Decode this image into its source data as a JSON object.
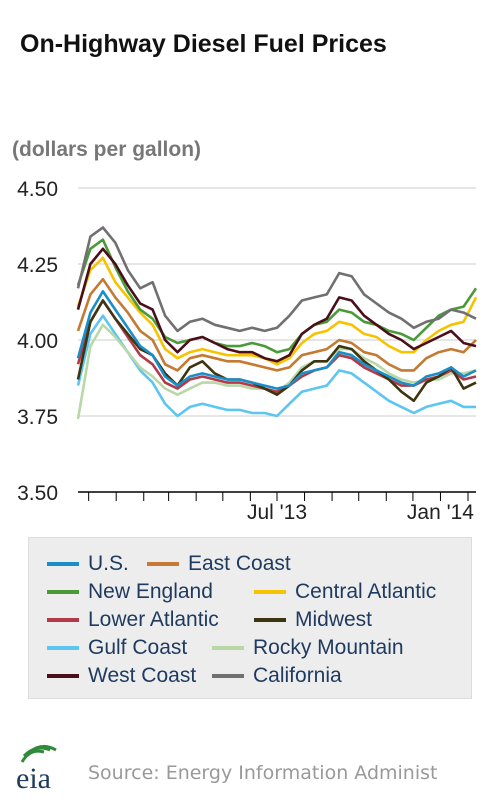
{
  "chart_data": {
    "type": "line",
    "title": "On-Highway Diesel Fuel Prices",
    "ylabel": "(dollars per gallon)",
    "xlabel": "",
    "ylim": [
      3.5,
      4.5
    ],
    "yticks": [
      "4.50",
      "4.25",
      "4.00",
      "3.75",
      "3.50"
    ],
    "ytick_values": [
      4.5,
      4.25,
      4.0,
      3.75,
      3.5
    ],
    "xlim": [
      "2012-11-19",
      "2014-02-10"
    ],
    "xticks": [
      "Jul '13",
      "Jan '14"
    ],
    "xtick_dates": [
      "2013-07-01",
      "2014-01-01"
    ],
    "grid": true,
    "legend": "bottom",
    "x": [
      "2012-11-19",
      "2012-12-03",
      "2012-12-17",
      "2012-12-31",
      "2013-01-14",
      "2013-01-28",
      "2013-02-11",
      "2013-02-25",
      "2013-03-11",
      "2013-03-25",
      "2013-04-08",
      "2013-04-22",
      "2013-05-06",
      "2013-05-20",
      "2013-06-03",
      "2013-06-17",
      "2013-07-01",
      "2013-07-15",
      "2013-07-29",
      "2013-08-12",
      "2013-08-26",
      "2013-09-09",
      "2013-09-23",
      "2013-10-07",
      "2013-10-21",
      "2013-11-04",
      "2013-11-18",
      "2013-12-02",
      "2013-12-16",
      "2013-12-30",
      "2014-01-13",
      "2014-01-27",
      "2014-02-10"
    ],
    "series": [
      {
        "name": "U.S.",
        "color": "#1a8ec8",
        "values": [
          3.94,
          4.09,
          4.16,
          4.1,
          4.04,
          3.98,
          3.95,
          3.88,
          3.85,
          3.88,
          3.89,
          3.88,
          3.87,
          3.87,
          3.86,
          3.85,
          3.84,
          3.85,
          3.89,
          3.9,
          3.91,
          3.96,
          3.95,
          3.92,
          3.9,
          3.88,
          3.86,
          3.85,
          3.88,
          3.89,
          3.91,
          3.88,
          3.9
        ]
      },
      {
        "name": "East Coast",
        "color": "#c47a32",
        "values": [
          4.03,
          4.15,
          4.2,
          4.14,
          4.09,
          4.03,
          4.0,
          3.92,
          3.9,
          3.94,
          3.95,
          3.94,
          3.93,
          3.93,
          3.92,
          3.91,
          3.9,
          3.91,
          3.95,
          3.96,
          3.97,
          4.0,
          3.99,
          3.96,
          3.95,
          3.92,
          3.9,
          3.9,
          3.94,
          3.96,
          3.97,
          3.96,
          4.0
        ]
      },
      {
        "name": "New England",
        "color": "#4a9a3a",
        "values": [
          4.18,
          4.3,
          4.33,
          4.24,
          4.16,
          4.1,
          4.07,
          4.01,
          3.99,
          4.0,
          4.01,
          3.99,
          3.98,
          3.98,
          3.99,
          3.98,
          3.96,
          3.97,
          4.02,
          4.05,
          4.06,
          4.1,
          4.09,
          4.06,
          4.05,
          4.03,
          4.02,
          4.0,
          4.04,
          4.08,
          4.1,
          4.11,
          4.17
        ]
      },
      {
        "name": "Central Atlantic",
        "color": "#f7c300",
        "values": [
          4.11,
          4.23,
          4.27,
          4.19,
          4.14,
          4.09,
          4.05,
          3.97,
          3.94,
          3.96,
          3.97,
          3.96,
          3.95,
          3.95,
          3.95,
          3.94,
          3.92,
          3.94,
          3.99,
          4.02,
          4.03,
          4.06,
          4.05,
          4.02,
          4.01,
          3.98,
          3.96,
          3.96,
          4.0,
          4.03,
          4.05,
          4.06,
          4.14
        ]
      },
      {
        "name": "Lower Atlantic",
        "color": "#b23a48",
        "values": [
          3.92,
          4.06,
          4.13,
          4.07,
          4.01,
          3.95,
          3.92,
          3.86,
          3.84,
          3.87,
          3.88,
          3.87,
          3.86,
          3.86,
          3.85,
          3.84,
          3.83,
          3.85,
          3.88,
          3.9,
          3.91,
          3.95,
          3.94,
          3.91,
          3.89,
          3.87,
          3.85,
          3.85,
          3.87,
          3.88,
          3.9,
          3.87,
          3.88
        ]
      },
      {
        "name": "Midwest",
        "color": "#3d3510",
        "values": [
          3.87,
          4.06,
          4.13,
          4.07,
          4.02,
          3.97,
          3.95,
          3.89,
          3.85,
          3.91,
          3.93,
          3.89,
          3.87,
          3.87,
          3.86,
          3.84,
          3.82,
          3.85,
          3.9,
          3.93,
          3.93,
          3.98,
          3.97,
          3.93,
          3.9,
          3.87,
          3.83,
          3.8,
          3.86,
          3.88,
          3.91,
          3.84,
          3.86
        ]
      },
      {
        "name": "Gulf Coast",
        "color": "#5cc5f0",
        "values": [
          3.85,
          4.02,
          4.08,
          4.02,
          3.96,
          3.9,
          3.86,
          3.79,
          3.75,
          3.78,
          3.79,
          3.78,
          3.77,
          3.77,
          3.76,
          3.76,
          3.75,
          3.79,
          3.83,
          3.84,
          3.85,
          3.9,
          3.89,
          3.86,
          3.83,
          3.8,
          3.78,
          3.76,
          3.78,
          3.79,
          3.8,
          3.78,
          3.78
        ]
      },
      {
        "name": "Rocky Mountain",
        "color": "#b8d8a8",
        "values": [
          3.74,
          3.98,
          4.05,
          4.01,
          3.96,
          3.91,
          3.88,
          3.84,
          3.82,
          3.84,
          3.86,
          3.86,
          3.85,
          3.85,
          3.84,
          3.84,
          3.83,
          3.86,
          3.91,
          3.93,
          3.93,
          3.97,
          3.97,
          3.94,
          3.92,
          3.89,
          3.87,
          3.86,
          3.87,
          3.87,
          3.89,
          3.89,
          3.9
        ]
      },
      {
        "name": "West Coast",
        "color": "#4a0f1a",
        "values": [
          4.1,
          4.25,
          4.3,
          4.25,
          4.18,
          4.12,
          4.1,
          4.0,
          3.96,
          4.0,
          4.01,
          3.99,
          3.97,
          3.96,
          3.96,
          3.94,
          3.93,
          3.95,
          4.02,
          4.05,
          4.07,
          4.14,
          4.13,
          4.08,
          4.05,
          4.02,
          4.0,
          3.97,
          3.99,
          4.01,
          4.03,
          3.99,
          3.98
        ]
      },
      {
        "name": "California",
        "color": "#707070",
        "values": [
          4.17,
          4.34,
          4.37,
          4.32,
          4.23,
          4.17,
          4.19,
          4.08,
          4.03,
          4.06,
          4.07,
          4.05,
          4.04,
          4.03,
          4.04,
          4.03,
          4.04,
          4.08,
          4.13,
          4.14,
          4.15,
          4.22,
          4.21,
          4.15,
          4.12,
          4.09,
          4.07,
          4.04,
          4.06,
          4.07,
          4.1,
          4.09,
          4.07
        ]
      }
    ]
  },
  "footer": {
    "source": "Source: Energy Information Administ",
    "logo_text": "eia",
    "logo_icon": "eia-logo-icon"
  }
}
